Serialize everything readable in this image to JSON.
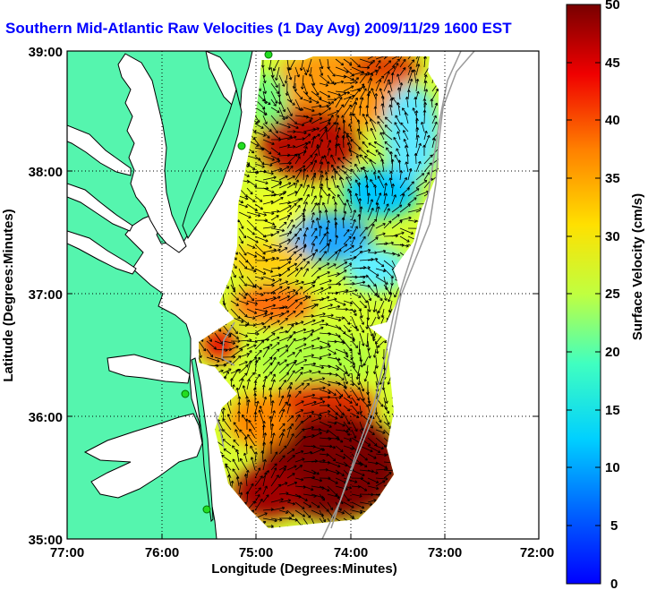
{
  "title": "Southern Mid-Atlantic Raw Velocities (1 Day Avg) 2009/11/29 1600 EST",
  "map": {
    "xlabel": "Longitude (Degrees:Minutes)",
    "ylabel": "Latitude (Degrees:Minutes)",
    "lon_ticks": [
      "77:00",
      "76:00",
      "75:00",
      "74:00",
      "73:00",
      "72:00"
    ],
    "lat_ticks": [
      "39:00",
      "38:00",
      "37:00",
      "36:00",
      "35:00"
    ],
    "colors": {
      "land": "#55f5ae",
      "water": "#ffffff",
      "contour": "#9a9a9a",
      "station": "#22dd22"
    }
  },
  "colorbar": {
    "label": "Surface Velocity (cm/s)",
    "ticks": [
      "50",
      "45",
      "40",
      "35",
      "30",
      "25",
      "20",
      "15",
      "10",
      "5",
      "0"
    ],
    "range": [
      0,
      50
    ],
    "colormap": "jet"
  }
}
